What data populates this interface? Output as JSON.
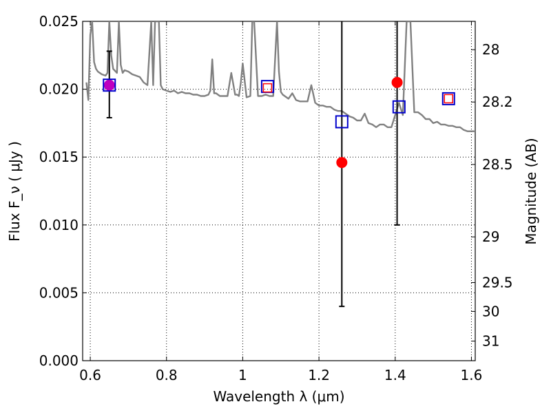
{
  "chart_data": {
    "type": "scatter",
    "xlabel": "Wavelength  λ (μm)",
    "ylabel": "Flux  F_ν  ( μJy )",
    "ylabel_right": "Magnitude (AB)",
    "xlim": [
      0.58,
      1.61
    ],
    "ylim": [
      0.0,
      0.025
    ],
    "grid": true,
    "x_ticks": [
      0.6,
      0.8,
      1.0,
      1.2,
      1.4,
      1.6
    ],
    "x_tick_labels": [
      "0.6",
      "0.8",
      "1",
      "1.2",
      "1.4",
      "1.6"
    ],
    "y_ticks": [
      0.0,
      0.005,
      0.01,
      0.015,
      0.02,
      0.025
    ],
    "y_tick_labels": [
      "0.000",
      "0.005",
      "0.010",
      "0.015",
      "0.020",
      "0.025"
    ],
    "mag_ticks": [
      28,
      28.2,
      28.5,
      29,
      29.5,
      30,
      31
    ],
    "mag_tick_labels": [
      "28",
      "28.2",
      "28.5",
      "29",
      "29.5",
      "30",
      "31"
    ],
    "colors": {
      "model": "#808080",
      "observed": "#ff0000",
      "model_phot": "#0000cc",
      "outlier": "#ff0000",
      "errorbar": "#000000",
      "overlap": "#bf00bf"
    },
    "series": [
      {
        "kind": "line",
        "x": [
          0.59,
          0.595,
          0.6,
          0.605,
          0.61,
          0.615,
          0.62,
          0.63,
          0.64,
          0.645,
          0.65,
          0.655,
          0.66,
          0.67,
          0.675,
          0.68,
          0.685,
          0.69,
          0.7,
          0.71,
          0.72,
          0.73,
          0.74,
          0.75,
          0.76,
          0.765,
          0.77,
          0.775,
          0.78,
          0.785,
          0.79,
          0.8,
          0.81,
          0.82,
          0.83,
          0.84,
          0.85,
          0.86,
          0.87,
          0.88,
          0.89,
          0.9,
          0.91,
          0.915,
          0.92,
          0.925,
          0.93,
          0.94,
          0.95,
          0.96,
          0.97,
          0.98,
          0.985,
          0.99,
          0.995,
          1.0,
          1.01,
          1.02,
          1.025,
          1.03,
          1.04,
          1.05,
          1.06,
          1.07,
          1.08,
          1.09,
          1.095,
          1.1,
          1.105,
          1.11,
          1.12,
          1.13,
          1.14,
          1.15,
          1.16,
          1.17,
          1.18,
          1.19,
          1.2,
          1.21,
          1.22,
          1.23,
          1.24,
          1.25,
          1.26,
          1.27,
          1.28,
          1.29,
          1.3,
          1.31,
          1.32,
          1.33,
          1.34,
          1.35,
          1.36,
          1.37,
          1.38,
          1.39,
          1.4,
          1.41,
          1.42,
          1.43,
          1.44,
          1.45,
          1.46,
          1.47,
          1.48,
          1.49,
          1.5,
          1.51,
          1.52,
          1.53,
          1.54,
          1.55,
          1.56,
          1.57,
          1.58,
          1.59,
          1.6,
          1.61
        ],
        "y": [
          0.0205,
          0.0192,
          0.024,
          0.025,
          0.022,
          0.0215,
          0.0213,
          0.0211,
          0.021,
          0.0212,
          0.025,
          0.0225,
          0.0215,
          0.0212,
          0.025,
          0.0218,
          0.0212,
          0.0214,
          0.0213,
          0.0211,
          0.021,
          0.0209,
          0.0205,
          0.0203,
          0.025,
          0.0203,
          0.025,
          0.025,
          0.025,
          0.0203,
          0.02,
          0.0199,
          0.0198,
          0.0199,
          0.0197,
          0.0198,
          0.0197,
          0.0197,
          0.0196,
          0.0196,
          0.0195,
          0.0195,
          0.0196,
          0.0199,
          0.0222,
          0.0197,
          0.0197,
          0.0195,
          0.0195,
          0.0195,
          0.0212,
          0.0196,
          0.0196,
          0.0195,
          0.0205,
          0.0219,
          0.0194,
          0.0195,
          0.025,
          0.025,
          0.0195,
          0.0195,
          0.0196,
          0.0195,
          0.0195,
          0.025,
          0.0213,
          0.0198,
          0.0196,
          0.0195,
          0.0193,
          0.0197,
          0.0192,
          0.0191,
          0.0191,
          0.0191,
          0.0203,
          0.019,
          0.0188,
          0.0188,
          0.0187,
          0.0187,
          0.0185,
          0.0184,
          0.0184,
          0.0182,
          0.018,
          0.0179,
          0.0177,
          0.0177,
          0.0182,
          0.0175,
          0.0174,
          0.0172,
          0.0174,
          0.0174,
          0.0172,
          0.0172,
          0.0181,
          0.019,
          0.0181,
          0.025,
          0.025,
          0.0183,
          0.0183,
          0.0181,
          0.0178,
          0.0178,
          0.0175,
          0.0176,
          0.0174,
          0.0174,
          0.0173,
          0.0173,
          0.0172,
          0.0172,
          0.017,
          0.0169,
          0.0169,
          0.0169
        ]
      },
      {
        "kind": "observed",
        "x": [
          0.65,
          1.26,
          1.405
        ],
        "y": [
          0.0203,
          0.0146,
          0.0205
        ],
        "err": [
          [
            0.0179,
            0.0228
          ],
          [
            0.004,
            0.025
          ],
          [
            0.01,
            0.025
          ]
        ]
      },
      {
        "kind": "model_phot",
        "x": [
          0.65,
          1.065,
          1.26,
          1.41,
          1.54
        ],
        "y": [
          0.0203,
          0.0202,
          0.0176,
          0.0187,
          0.0193
        ]
      },
      {
        "kind": "outlier",
        "x": [
          1.065,
          1.54
        ],
        "y": [
          0.0201,
          0.0193
        ]
      }
    ]
  }
}
